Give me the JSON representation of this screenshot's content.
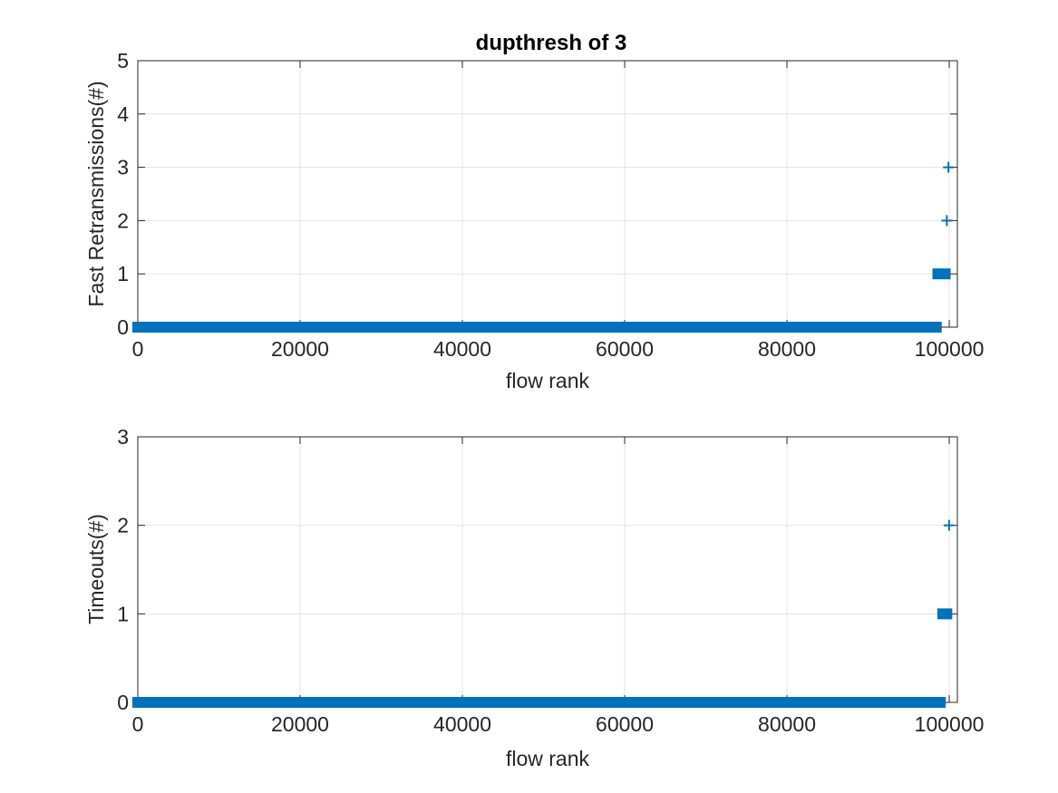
{
  "figure": {
    "background": "#ffffff",
    "series_color": "#0072bd"
  },
  "chart_data": [
    {
      "type": "scatter",
      "title": "dupthresh of 3",
      "xlabel": "flow rank",
      "ylabel": "Fast Retransmissions(#)",
      "xlim": [
        0,
        101000
      ],
      "ylim": [
        0,
        5
      ],
      "xticks": [
        0,
        20000,
        40000,
        60000,
        80000,
        100000
      ],
      "yticks": [
        0,
        1,
        2,
        3,
        4,
        5
      ],
      "xtick_labels": [
        "0",
        "20000",
        "40000",
        "60000",
        "80000",
        "100000"
      ],
      "ytick_labels": [
        "0",
        "1",
        "2",
        "3",
        "4",
        "5"
      ],
      "grid": true,
      "marker": "plus",
      "series": [
        {
          "segments": [
            {
              "y": 0,
              "x_start": 0,
              "x_end": 98400
            },
            {
              "y": 1,
              "x_start": 98600,
              "x_end": 99500
            }
          ],
          "points": [
            {
              "x": 99700,
              "y": 2
            },
            {
              "x": 99900,
              "y": 3
            }
          ]
        }
      ]
    },
    {
      "type": "scatter",
      "title": "",
      "xlabel": "flow rank",
      "ylabel": "Timeouts(#)",
      "xlim": [
        0,
        101000
      ],
      "ylim": [
        0,
        3
      ],
      "xticks": [
        0,
        20000,
        40000,
        60000,
        80000,
        100000
      ],
      "yticks": [
        0,
        1,
        2,
        3
      ],
      "xtick_labels": [
        "0",
        "20000",
        "40000",
        "60000",
        "80000",
        "100000"
      ],
      "ytick_labels": [
        "0",
        "1",
        "2",
        "3"
      ],
      "grid": true,
      "marker": "plus",
      "series": [
        {
          "segments": [
            {
              "y": 0,
              "x_start": 0,
              "x_end": 98900
            },
            {
              "y": 1,
              "x_start": 99200,
              "x_end": 99700
            }
          ],
          "points": [
            {
              "x": 99980,
              "y": 2
            }
          ]
        }
      ]
    }
  ]
}
